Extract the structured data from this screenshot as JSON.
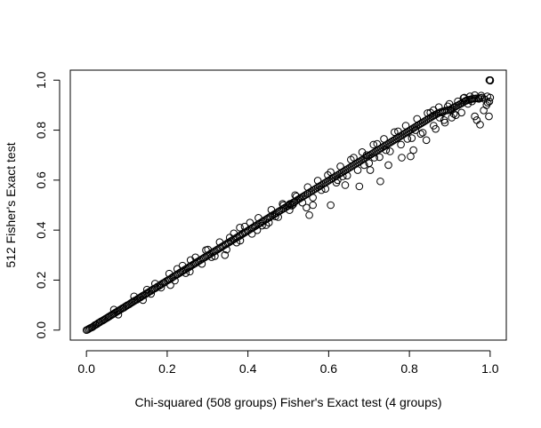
{
  "chart_data": {
    "type": "scatter",
    "title": "",
    "xlabel": "Chi-squared (508 groups) Fisher's Exact test (4 groups)",
    "ylabel": "512 Fisher's Exact test",
    "xlim": [
      -0.04,
      1.04
    ],
    "ylim": [
      -0.04,
      1.04
    ],
    "xticks": [
      0.0,
      0.2,
      0.4,
      0.6,
      0.8,
      1.0
    ],
    "yticks": [
      0.0,
      0.2,
      0.4,
      0.6,
      0.8,
      1.0
    ],
    "xtick_labels": [
      "0.0",
      "0.2",
      "0.4",
      "0.6",
      "0.8",
      "1.0"
    ],
    "ytick_labels": [
      "0.0",
      "0.2",
      "0.4",
      "0.6",
      "0.8",
      "1.0"
    ],
    "grid": false,
    "legend": "none",
    "marker": "open-circle",
    "colors": {
      "points": "#000000",
      "axes": "#000000",
      "background": "#ffffff"
    },
    "points": [
      [
        0.0,
        0.0
      ],
      [
        0.003,
        0.002
      ],
      [
        0.006,
        0.005
      ],
      [
        0.009,
        0.008
      ],
      [
        0.012,
        0.01
      ],
      [
        0.015,
        0.012
      ],
      [
        0.018,
        0.016
      ],
      [
        0.021,
        0.02
      ],
      [
        0.024,
        0.022
      ],
      [
        0.027,
        0.025
      ],
      [
        0.03,
        0.029
      ],
      [
        0.033,
        0.031
      ],
      [
        0.036,
        0.035
      ],
      [
        0.04,
        0.038
      ],
      [
        0.043,
        0.041
      ],
      [
        0.046,
        0.044
      ],
      [
        0.049,
        0.047
      ],
      [
        0.052,
        0.05
      ],
      [
        0.055,
        0.053
      ],
      [
        0.058,
        0.056
      ],
      [
        0.062,
        0.06
      ],
      [
        0.065,
        0.063
      ],
      [
        0.068,
        0.066
      ],
      [
        0.071,
        0.069
      ],
      [
        0.074,
        0.072
      ],
      [
        0.077,
        0.075
      ],
      [
        0.08,
        0.078
      ],
      [
        0.083,
        0.081
      ],
      [
        0.087,
        0.085
      ],
      [
        0.09,
        0.088
      ],
      [
        0.093,
        0.09
      ],
      [
        0.096,
        0.094
      ],
      [
        0.099,
        0.097
      ],
      [
        0.102,
        0.1
      ],
      [
        0.106,
        0.103
      ],
      [
        0.109,
        0.107
      ],
      [
        0.112,
        0.11
      ],
      [
        0.115,
        0.113
      ],
      [
        0.118,
        0.116
      ],
      [
        0.121,
        0.119
      ],
      [
        0.125,
        0.122
      ],
      [
        0.128,
        0.126
      ],
      [
        0.131,
        0.129
      ],
      [
        0.134,
        0.131
      ],
      [
        0.137,
        0.135
      ],
      [
        0.14,
        0.138
      ],
      [
        0.144,
        0.141
      ],
      [
        0.147,
        0.145
      ],
      [
        0.15,
        0.148
      ],
      [
        0.153,
        0.15
      ],
      [
        0.156,
        0.154
      ],
      [
        0.16,
        0.157
      ],
      [
        0.163,
        0.161
      ],
      [
        0.166,
        0.164
      ],
      [
        0.17,
        0.167
      ],
      [
        0.173,
        0.17
      ],
      [
        0.176,
        0.174
      ],
      [
        0.18,
        0.177
      ],
      [
        0.183,
        0.18
      ],
      [
        0.186,
        0.184
      ],
      [
        0.19,
        0.188
      ],
      [
        0.193,
        0.19
      ],
      [
        0.196,
        0.194
      ],
      [
        0.2,
        0.198
      ],
      [
        0.203,
        0.201
      ],
      [
        0.206,
        0.203
      ],
      [
        0.21,
        0.207
      ],
      [
        0.213,
        0.211
      ],
      [
        0.216,
        0.214
      ],
      [
        0.22,
        0.218
      ],
      [
        0.223,
        0.221
      ],
      [
        0.226,
        0.224
      ],
      [
        0.23,
        0.228
      ],
      [
        0.233,
        0.231
      ],
      [
        0.237,
        0.235
      ],
      [
        0.24,
        0.238
      ],
      [
        0.243,
        0.241
      ],
      [
        0.247,
        0.245
      ],
      [
        0.25,
        0.248
      ],
      [
        0.254,
        0.252
      ],
      [
        0.257,
        0.255
      ],
      [
        0.26,
        0.258
      ],
      [
        0.264,
        0.262
      ],
      [
        0.267,
        0.265
      ],
      [
        0.27,
        0.268
      ],
      [
        0.274,
        0.272
      ],
      [
        0.277,
        0.275
      ],
      [
        0.281,
        0.279
      ],
      [
        0.284,
        0.282
      ],
      [
        0.288,
        0.286
      ],
      [
        0.291,
        0.289
      ],
      [
        0.294,
        0.292
      ],
      [
        0.298,
        0.296
      ],
      [
        0.301,
        0.299
      ],
      [
        0.305,
        0.303
      ],
      [
        0.308,
        0.306
      ],
      [
        0.312,
        0.31
      ],
      [
        0.315,
        0.313
      ],
      [
        0.318,
        0.316
      ],
      [
        0.322,
        0.32
      ],
      [
        0.325,
        0.323
      ],
      [
        0.329,
        0.327
      ],
      [
        0.332,
        0.33
      ],
      [
        0.336,
        0.334
      ],
      [
        0.339,
        0.337
      ],
      [
        0.343,
        0.341
      ],
      [
        0.346,
        0.344
      ],
      [
        0.35,
        0.348
      ],
      [
        0.353,
        0.351
      ],
      [
        0.357,
        0.355
      ],
      [
        0.36,
        0.358
      ],
      [
        0.364,
        0.362
      ],
      [
        0.367,
        0.365
      ],
      [
        0.371,
        0.369
      ],
      [
        0.374,
        0.372
      ],
      [
        0.378,
        0.376
      ],
      [
        0.381,
        0.379
      ],
      [
        0.385,
        0.383
      ],
      [
        0.388,
        0.386
      ],
      [
        0.392,
        0.39
      ],
      [
        0.395,
        0.393
      ],
      [
        0.399,
        0.397
      ],
      [
        0.402,
        0.4
      ],
      [
        0.406,
        0.404
      ],
      [
        0.41,
        0.408
      ],
      [
        0.413,
        0.411
      ],
      [
        0.417,
        0.415
      ],
      [
        0.42,
        0.418
      ],
      [
        0.424,
        0.422
      ],
      [
        0.428,
        0.426
      ],
      [
        0.431,
        0.429
      ],
      [
        0.435,
        0.433
      ],
      [
        0.438,
        0.436
      ],
      [
        0.442,
        0.44
      ],
      [
        0.446,
        0.444
      ],
      [
        0.449,
        0.447
      ],
      [
        0.453,
        0.451
      ],
      [
        0.456,
        0.454
      ],
      [
        0.46,
        0.458
      ],
      [
        0.464,
        0.462
      ],
      [
        0.467,
        0.465
      ],
      [
        0.471,
        0.469
      ],
      [
        0.475,
        0.473
      ],
      [
        0.478,
        0.476
      ],
      [
        0.482,
        0.48
      ],
      [
        0.486,
        0.484
      ],
      [
        0.489,
        0.487
      ],
      [
        0.493,
        0.491
      ],
      [
        0.497,
        0.495
      ],
      [
        0.5,
        0.498
      ],
      [
        0.504,
        0.502
      ],
      [
        0.508,
        0.506
      ],
      [
        0.512,
        0.51
      ],
      [
        0.515,
        0.513
      ],
      [
        0.519,
        0.517
      ],
      [
        0.523,
        0.521
      ],
      [
        0.527,
        0.525
      ],
      [
        0.53,
        0.528
      ],
      [
        0.534,
        0.532
      ],
      [
        0.538,
        0.536
      ],
      [
        0.542,
        0.54
      ],
      [
        0.546,
        0.544
      ],
      [
        0.549,
        0.547
      ],
      [
        0.553,
        0.551
      ],
      [
        0.557,
        0.555
      ],
      [
        0.561,
        0.559
      ],
      [
        0.565,
        0.563
      ],
      [
        0.569,
        0.567
      ],
      [
        0.573,
        0.571
      ],
      [
        0.577,
        0.575
      ],
      [
        0.581,
        0.579
      ],
      [
        0.585,
        0.583
      ],
      [
        0.589,
        0.587
      ],
      [
        0.593,
        0.591
      ],
      [
        0.597,
        0.595
      ],
      [
        0.601,
        0.599
      ],
      [
        0.605,
        0.603
      ],
      [
        0.609,
        0.607
      ],
      [
        0.613,
        0.611
      ],
      [
        0.617,
        0.615
      ],
      [
        0.621,
        0.619
      ],
      [
        0.625,
        0.623
      ],
      [
        0.629,
        0.627
      ],
      [
        0.633,
        0.631
      ],
      [
        0.637,
        0.635
      ],
      [
        0.641,
        0.639
      ],
      [
        0.645,
        0.643
      ],
      [
        0.649,
        0.647
      ],
      [
        0.653,
        0.651
      ],
      [
        0.657,
        0.655
      ],
      [
        0.661,
        0.659
      ],
      [
        0.665,
        0.663
      ],
      [
        0.669,
        0.667
      ],
      [
        0.673,
        0.671
      ],
      [
        0.677,
        0.675
      ],
      [
        0.681,
        0.679
      ],
      [
        0.685,
        0.683
      ],
      [
        0.689,
        0.687
      ],
      [
        0.693,
        0.691
      ],
      [
        0.697,
        0.695
      ],
      [
        0.701,
        0.699
      ],
      [
        0.705,
        0.703
      ],
      [
        0.709,
        0.707
      ],
      [
        0.713,
        0.711
      ],
      [
        0.717,
        0.715
      ],
      [
        0.721,
        0.719
      ],
      [
        0.725,
        0.723
      ],
      [
        0.729,
        0.727
      ],
      [
        0.733,
        0.731
      ],
      [
        0.737,
        0.735
      ],
      [
        0.741,
        0.739
      ],
      [
        0.745,
        0.743
      ],
      [
        0.749,
        0.747
      ],
      [
        0.753,
        0.751
      ],
      [
        0.757,
        0.755
      ],
      [
        0.761,
        0.759
      ],
      [
        0.765,
        0.763
      ],
      [
        0.769,
        0.767
      ],
      [
        0.773,
        0.771
      ],
      [
        0.777,
        0.775
      ],
      [
        0.781,
        0.779
      ],
      [
        0.785,
        0.783
      ],
      [
        0.789,
        0.787
      ],
      [
        0.793,
        0.791
      ],
      [
        0.797,
        0.795
      ],
      [
        0.801,
        0.799
      ],
      [
        0.805,
        0.803
      ],
      [
        0.809,
        0.807
      ],
      [
        0.813,
        0.811
      ],
      [
        0.817,
        0.815
      ],
      [
        0.821,
        0.819
      ],
      [
        0.825,
        0.823
      ],
      [
        0.829,
        0.827
      ],
      [
        0.833,
        0.831
      ],
      [
        0.837,
        0.835
      ],
      [
        0.841,
        0.839
      ],
      [
        0.845,
        0.843
      ],
      [
        0.849,
        0.847
      ],
      [
        0.853,
        0.851
      ],
      [
        0.857,
        0.855
      ],
      [
        0.861,
        0.859
      ],
      [
        0.865,
        0.862
      ],
      [
        0.869,
        0.866
      ],
      [
        0.873,
        0.869
      ],
      [
        0.877,
        0.872
      ],
      [
        0.881,
        0.874
      ],
      [
        0.885,
        0.876
      ],
      [
        0.889,
        0.878
      ],
      [
        0.893,
        0.879
      ],
      [
        0.897,
        0.88
      ],
      [
        0.901,
        0.882
      ],
      [
        0.905,
        0.886
      ],
      [
        0.909,
        0.89
      ],
      [
        0.913,
        0.893
      ],
      [
        0.917,
        0.897
      ],
      [
        0.921,
        0.9
      ],
      [
        0.925,
        0.904
      ],
      [
        0.929,
        0.907
      ],
      [
        0.933,
        0.911
      ],
      [
        0.937,
        0.915
      ],
      [
        0.941,
        0.918
      ],
      [
        0.945,
        0.92
      ],
      [
        0.949,
        0.922
      ],
      [
        0.953,
        0.924
      ],
      [
        0.957,
        0.925
      ],
      [
        0.961,
        0.926
      ],
      [
        0.965,
        0.927
      ],
      [
        0.97,
        0.928
      ],
      [
        0.975,
        0.929
      ],
      [
        0.98,
        0.93
      ],
      [
        0.068,
        0.082
      ],
      [
        0.079,
        0.062
      ],
      [
        0.118,
        0.135
      ],
      [
        0.14,
        0.12
      ],
      [
        0.17,
        0.186
      ],
      [
        0.185,
        0.17
      ],
      [
        0.205,
        0.226
      ],
      [
        0.219,
        0.198
      ],
      [
        0.238,
        0.258
      ],
      [
        0.256,
        0.234
      ],
      [
        0.27,
        0.291
      ],
      [
        0.286,
        0.265
      ],
      [
        0.301,
        0.322
      ],
      [
        0.318,
        0.296
      ],
      [
        0.33,
        0.352
      ],
      [
        0.347,
        0.322
      ],
      [
        0.365,
        0.387
      ],
      [
        0.381,
        0.358
      ],
      [
        0.392,
        0.414
      ],
      [
        0.41,
        0.385
      ],
      [
        0.426,
        0.449
      ],
      [
        0.445,
        0.42
      ],
      [
        0.458,
        0.481
      ],
      [
        0.475,
        0.452
      ],
      [
        0.486,
        0.505
      ],
      [
        0.503,
        0.48
      ],
      [
        0.517,
        0.54
      ],
      [
        0.535,
        0.51
      ],
      [
        0.548,
        0.572
      ],
      [
        0.561,
        0.53
      ],
      [
        0.573,
        0.598
      ],
      [
        0.592,
        0.565
      ],
      [
        0.605,
        0.632
      ],
      [
        0.619,
        0.59
      ],
      [
        0.629,
        0.655
      ],
      [
        0.646,
        0.618
      ],
      [
        0.655,
        0.682
      ],
      [
        0.672,
        0.64
      ],
      [
        0.683,
        0.712
      ],
      [
        0.7,
        0.668
      ],
      [
        0.711,
        0.742
      ],
      [
        0.726,
        0.692
      ],
      [
        0.737,
        0.765
      ],
      [
        0.752,
        0.715
      ],
      [
        0.763,
        0.792
      ],
      [
        0.779,
        0.742
      ],
      [
        0.791,
        0.818
      ],
      [
        0.806,
        0.768
      ],
      [
        0.819,
        0.845
      ],
      [
        0.833,
        0.79
      ],
      [
        0.845,
        0.868
      ],
      [
        0.86,
        0.818
      ],
      [
        0.873,
        0.892
      ],
      [
        0.886,
        0.84
      ],
      [
        0.899,
        0.905
      ],
      [
        0.91,
        0.865
      ],
      [
        0.208,
        0.18
      ],
      [
        0.258,
        0.28
      ],
      [
        0.296,
        0.32
      ],
      [
        0.343,
        0.3
      ],
      [
        0.38,
        0.41
      ],
      [
        0.423,
        0.4
      ],
      [
        0.452,
        0.43
      ],
      [
        0.488,
        0.5
      ],
      [
        0.504,
        0.505
      ],
      [
        0.509,
        0.498
      ],
      [
        0.512,
        0.503
      ],
      [
        0.545,
        0.49
      ],
      [
        0.552,
        0.46
      ],
      [
        0.561,
        0.5
      ],
      [
        0.605,
        0.5
      ],
      [
        0.622,
        0.6
      ],
      [
        0.641,
        0.58
      ],
      [
        0.676,
        0.575
      ],
      [
        0.694,
        0.7
      ],
      [
        0.703,
        0.64
      ],
      [
        0.713,
        0.69
      ],
      [
        0.728,
        0.595
      ],
      [
        0.748,
        0.66
      ],
      [
        0.781,
        0.69
      ],
      [
        0.803,
        0.695
      ],
      [
        0.81,
        0.72
      ],
      [
        0.828,
        0.785
      ],
      [
        0.842,
        0.76
      ],
      [
        0.86,
        0.88
      ],
      [
        0.865,
        0.805
      ],
      [
        0.875,
        0.85
      ],
      [
        0.888,
        0.83
      ],
      [
        0.895,
        0.895
      ],
      [
        0.905,
        0.85
      ],
      [
        0.915,
        0.86
      ],
      [
        0.929,
        0.87
      ],
      [
        0.936,
        0.93
      ],
      [
        0.945,
        0.905
      ],
      [
        0.955,
        0.915
      ],
      [
        0.962,
        0.855
      ],
      [
        0.967,
        0.84
      ],
      [
        0.975,
        0.822
      ],
      [
        0.984,
        0.879
      ],
      [
        0.991,
        0.9
      ],
      [
        0.994,
        0.91
      ],
      [
        0.997,
        0.855
      ],
      [
        1.0,
        0.93
      ],
      [
        0.998,
        0.915
      ],
      [
        0.993,
        0.935
      ],
      [
        0.985,
        0.925
      ],
      [
        0.978,
        0.938
      ],
      [
        0.972,
        0.925
      ],
      [
        0.962,
        0.94
      ],
      [
        0.95,
        0.935
      ],
      [
        0.94,
        0.918
      ],
      [
        0.934,
        0.928
      ],
      [
        1.0,
        1.0
      ],
      [
        0.999,
        1.0
      ],
      [
        1.0,
        0.998
      ],
      [
        0.998,
        1.0
      ],
      [
        1.0,
        1.0
      ],
      [
        0.15,
        0.162
      ],
      [
        0.16,
        0.145
      ],
      [
        0.225,
        0.245
      ],
      [
        0.246,
        0.228
      ],
      [
        0.31,
        0.292
      ],
      [
        0.355,
        0.37
      ],
      [
        0.372,
        0.35
      ],
      [
        0.405,
        0.43
      ],
      [
        0.435,
        0.418
      ],
      [
        0.468,
        0.455
      ],
      [
        0.52,
        0.535
      ],
      [
        0.582,
        0.56
      ],
      [
        0.598,
        0.62
      ],
      [
        0.635,
        0.615
      ],
      [
        0.662,
        0.69
      ],
      [
        0.688,
        0.66
      ],
      [
        0.72,
        0.745
      ],
      [
        0.742,
        0.72
      ],
      [
        0.772,
        0.795
      ],
      [
        0.795,
        0.765
      ],
      [
        0.815,
        0.8
      ],
      [
        0.852,
        0.87
      ],
      [
        0.882,
        0.87
      ],
      [
        0.903,
        0.88
      ],
      [
        0.92,
        0.915
      ]
    ]
  }
}
